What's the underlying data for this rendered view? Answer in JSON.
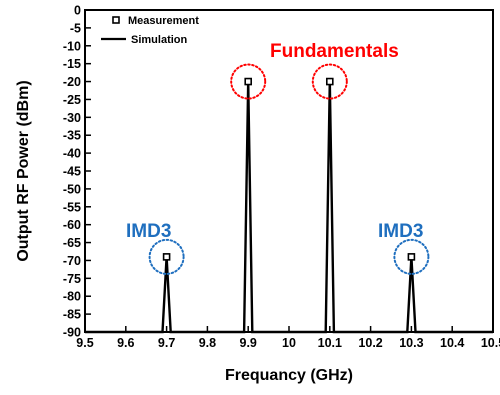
{
  "chart_data": {
    "type": "line",
    "xlabel": "Frequancy (GHz)",
    "ylabel": "Output RF Power (dBm)",
    "xlim": [
      9.5,
      10.5
    ],
    "ylim": [
      -90,
      0
    ],
    "x_ticks": [
      "9.5",
      "9.6",
      "9.7",
      "9.8",
      "9.9",
      "10",
      "10.1",
      "10.2",
      "10.3",
      "10.4",
      "10.5"
    ],
    "y_ticks": [
      "0",
      "-5",
      "-10",
      "-15",
      "-20",
      "-25",
      "-30",
      "-35",
      "-40",
      "-45",
      "-50",
      "-55",
      "-60",
      "-65",
      "-70",
      "-75",
      "-80",
      "-85",
      "-90"
    ],
    "series": [
      {
        "name": "Measurement",
        "style": "markers",
        "color": "#000000",
        "x": [
          9.7,
          9.9,
          10.1,
          10.3
        ],
        "y": [
          -69,
          -20,
          -20,
          -69
        ]
      },
      {
        "name": "Simulation",
        "style": "line",
        "color": "#000000",
        "x": [
          9.5,
          9.69,
          9.7,
          9.71,
          9.89,
          9.9,
          9.91,
          10.09,
          10.1,
          10.11,
          10.29,
          10.3,
          10.31,
          10.5
        ],
        "y": [
          -90,
          -90,
          -69,
          -90,
          -90,
          -20,
          -90,
          -90,
          -20,
          -90,
          -90,
          -69,
          -90,
          -90
        ]
      }
    ],
    "legend": {
      "position": "top-left",
      "entries": [
        "Measurement",
        "Simulation"
      ]
    },
    "annotations": [
      {
        "text": "Fundamentals",
        "color": "#ff0000"
      },
      {
        "text": "IMD3",
        "color": "#1f6fbf"
      },
      {
        "text": "IMD3",
        "color": "#1f6fbf"
      }
    ],
    "highlight_circles": [
      {
        "x": 9.9,
        "y": -20,
        "color": "#ff0000"
      },
      {
        "x": 10.1,
        "y": -20,
        "color": "#ff0000"
      },
      {
        "x": 9.7,
        "y": -69,
        "color": "#1f6fbf"
      },
      {
        "x": 10.3,
        "y": -69,
        "color": "#1f6fbf"
      }
    ],
    "grid": false
  }
}
